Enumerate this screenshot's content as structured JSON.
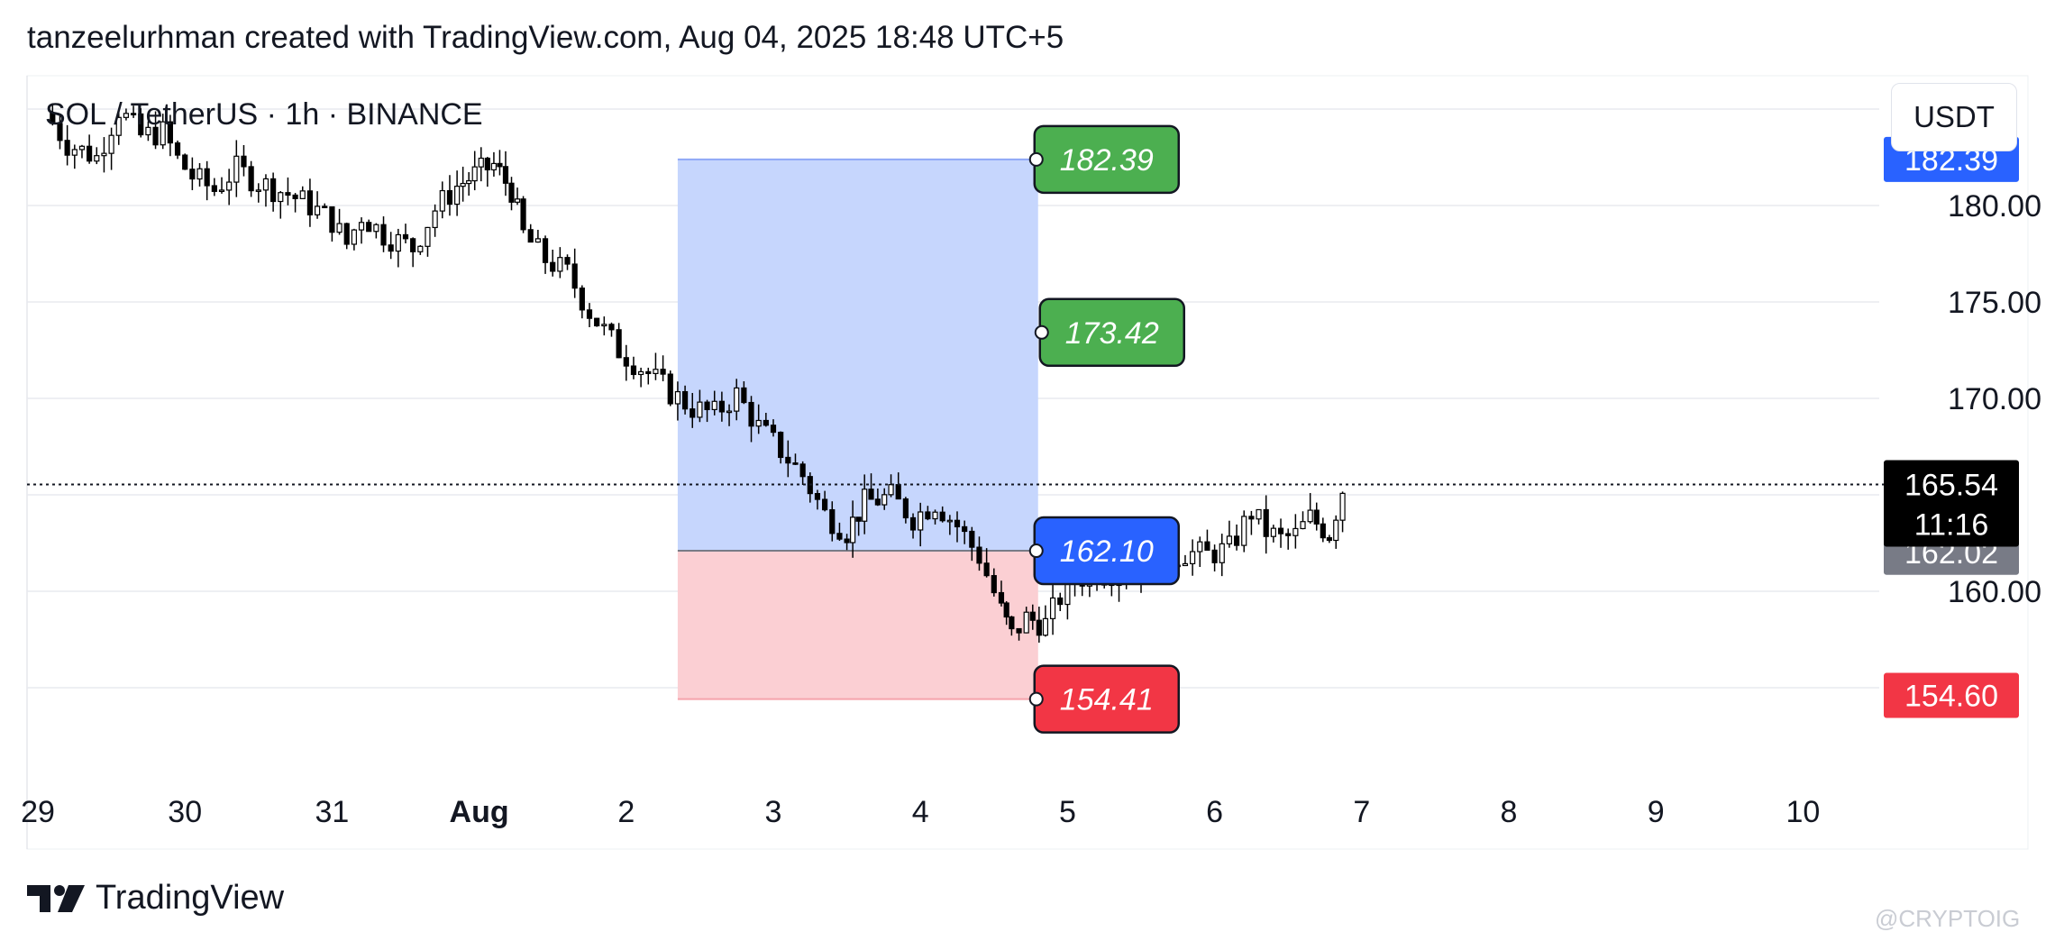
{
  "header": {
    "attribution": "tanzeelurhman created with TradingView.com, Aug 04, 2025 18:48 UTC+5"
  },
  "chart_data": {
    "type": "candlestick",
    "symbol_label": "SOL / TetherUS · 1h · BINANCE",
    "currency": "USDT",
    "x_ticks": [
      "29",
      "30",
      "31",
      "Aug",
      "2",
      "3",
      "4",
      "5",
      "6",
      "7",
      "8",
      "9",
      "10"
    ],
    "x_tick_bold": "Aug",
    "y_ticks": [
      160.0,
      170.0,
      175.0,
      180.0
    ],
    "y_ticks_text": [
      "160.00",
      "170.00",
      "175.00",
      "180.00"
    ],
    "ylim": [
      151.5,
      187.5
    ],
    "grid": true,
    "last_price": "165.54",
    "countdown": "11:16",
    "price_labels": [
      {
        "text": "182.39",
        "value": 182.39,
        "color": "#2962ff"
      },
      {
        "text": "162.02",
        "value": 162.02,
        "color": "#787b86"
      },
      {
        "text": "154.60",
        "value": 154.6,
        "color": "#f23645"
      }
    ],
    "position": {
      "side": "long",
      "entry": {
        "text": "162.10",
        "value": 162.1
      },
      "targets": [
        {
          "text": "182.39",
          "value": 182.39
        },
        {
          "text": "173.42",
          "value": 173.42
        }
      ],
      "stop": {
        "text": "154.41",
        "value": 154.41
      },
      "start_day": 4.35,
      "end_day": 6.8
    },
    "candles_close_path": [
      [
        0.05,
        184.8
      ],
      [
        0.2,
        183.2
      ],
      [
        0.4,
        182.5
      ],
      [
        0.55,
        185.0
      ],
      [
        0.7,
        183.6
      ],
      [
        0.85,
        183.8
      ],
      [
        0.95,
        182.4
      ],
      [
        1.05,
        181.5
      ],
      [
        1.2,
        180.8
      ],
      [
        1.35,
        181.9
      ],
      [
        1.5,
        181.2
      ],
      [
        1.7,
        180.6
      ],
      [
        1.85,
        180.0
      ],
      [
        2.0,
        179.2
      ],
      [
        2.1,
        178.0
      ],
      [
        2.2,
        179.5
      ],
      [
        2.35,
        178.5
      ],
      [
        2.55,
        177.8
      ],
      [
        2.7,
        179.8
      ],
      [
        2.85,
        181.0
      ],
      [
        2.97,
        181.6
      ],
      [
        3.1,
        182.1
      ],
      [
        3.22,
        180.8
      ],
      [
        3.3,
        178.5
      ],
      [
        3.45,
        177.2
      ],
      [
        3.6,
        176.5
      ],
      [
        3.75,
        174.5
      ],
      [
        3.95,
        172.5
      ],
      [
        4.15,
        171.3
      ],
      [
        4.3,
        170.3
      ],
      [
        4.45,
        169.5
      ],
      [
        4.6,
        169.2
      ],
      [
        4.75,
        170.2
      ],
      [
        4.9,
        168.5
      ],
      [
        5.05,
        167.3
      ],
      [
        5.2,
        166.0
      ],
      [
        5.35,
        164.0
      ],
      [
        5.5,
        163.1
      ],
      [
        5.62,
        164.6
      ],
      [
        5.8,
        164.9
      ],
      [
        5.95,
        163.8
      ],
      [
        6.1,
        164.6
      ],
      [
        6.25,
        163.4
      ],
      [
        6.4,
        161.8
      ],
      [
        6.55,
        159.0
      ],
      [
        6.62,
        157.7
      ],
      [
        6.72,
        158.6
      ],
      [
        6.85,
        158.3
      ],
      [
        7.0,
        160.4
      ],
      [
        7.15,
        160.9
      ],
      [
        7.3,
        161.0
      ],
      [
        7.5,
        161.1
      ],
      [
        7.65,
        161.6
      ],
      [
        7.8,
        162.0
      ],
      [
        7.95,
        161.9
      ],
      [
        8.1,
        162.2
      ],
      [
        8.25,
        164.1
      ],
      [
        8.35,
        163.1
      ],
      [
        8.45,
        162.7
      ],
      [
        8.55,
        162.9
      ],
      [
        8.65,
        163.8
      ],
      [
        8.78,
        163.0
      ],
      [
        8.87,
        165.3
      ]
    ]
  },
  "footer": {
    "brand": "TradingView",
    "watermark": "@CRYPTOIG"
  },
  "colors": {
    "target_green": "#4caf50",
    "entry_blue": "#2962ff",
    "stop_red": "#f23645",
    "profit_zone": "#c6d6fd",
    "loss_zone": "#fbcfd3",
    "candle": "#000000"
  }
}
